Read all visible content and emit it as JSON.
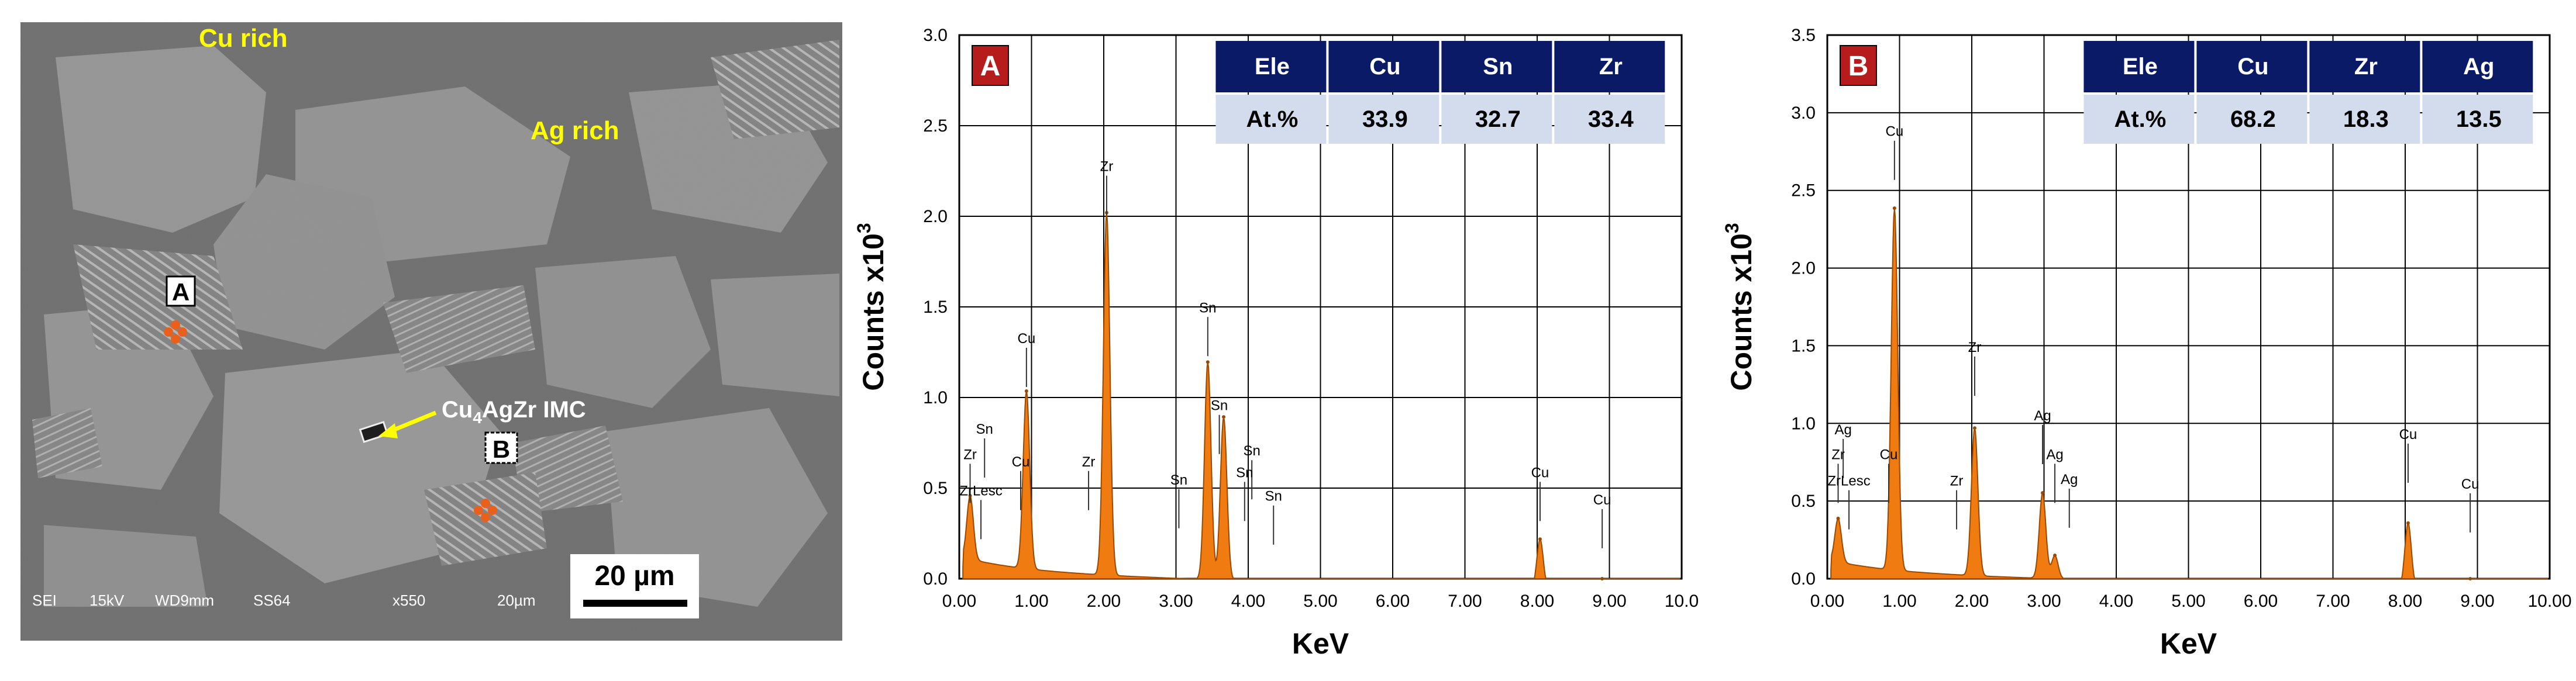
{
  "micrograph": {
    "region_labels": [
      "Cu rich",
      "Ag rich"
    ],
    "point_a_label": "A",
    "point_b_label": "B",
    "imc_label": "Cu",
    "imc_subscript": "4",
    "imc_label_rest": "AgZr IMC",
    "scale_bar_label": "20 µm",
    "info_bar": [
      "SEI",
      "15kV",
      "WD9mm",
      "SS64",
      "x550",
      "20µm"
    ],
    "colors": {
      "label_yellow": "#ffff00",
      "marker_orange": "#e8601c",
      "matrix": "#9a9a9a"
    }
  },
  "chart_data": [
    {
      "type": "area",
      "badge": "A",
      "xlabel": "KeV",
      "ylabel_main": "Counts x10",
      "ylabel_sup": "3",
      "xlim": [
        0,
        10
      ],
      "ylim": [
        0,
        3.0
      ],
      "xticks": [
        "0.00",
        "1.00",
        "2.00",
        "3.00",
        "4.00",
        "5.00",
        "6.00",
        "7.00",
        "8.00",
        "9.00",
        "10.0"
      ],
      "yticks": [
        "0.0",
        "0.5",
        "1.0",
        "1.5",
        "2.0",
        "2.5",
        "3.0"
      ],
      "grid": true,
      "fill_color": "#f07b10",
      "peaks": [
        [
          0.15,
          0.35
        ],
        [
          0.93,
          0.98
        ],
        [
          2.04,
          2.0
        ],
        [
          3.44,
          1.2
        ],
        [
          3.66,
          0.9
        ],
        [
          8.04,
          0.28
        ],
        [
          8.9,
          0.06
        ]
      ],
      "peak_labels": [
        {
          "text": "Zr",
          "x": 2.04,
          "y": 2.25
        },
        {
          "text": "Cu",
          "x": 0.93,
          "y": 1.3
        },
        {
          "text": "Sn",
          "x": 3.44,
          "y": 1.47
        },
        {
          "text": "Sn",
          "x": 0.35,
          "y": 0.8
        },
        {
          "text": "Zr",
          "x": 0.15,
          "y": 0.66
        },
        {
          "text": "Cu",
          "x": 0.85,
          "y": 0.62
        },
        {
          "text": "Zr",
          "x": 1.79,
          "y": 0.62
        },
        {
          "text": "ZrLesc",
          "x": 0.3,
          "y": 0.46
        },
        {
          "text": "Sn",
          "x": 3.6,
          "y": 0.93
        },
        {
          "text": "Sn",
          "x": 4.05,
          "y": 0.68
        },
        {
          "text": "Sn",
          "x": 3.95,
          "y": 0.56
        },
        {
          "text": "Sn",
          "x": 3.04,
          "y": 0.52
        },
        {
          "text": "Sn",
          "x": 4.35,
          "y": 0.43
        },
        {
          "text": "Cu",
          "x": 8.04,
          "y": 0.56
        },
        {
          "text": "Cu",
          "x": 8.9,
          "y": 0.41
        }
      ],
      "table": {
        "headers": [
          "Ele",
          "Cu",
          "Sn",
          "Zr"
        ],
        "row": [
          "At.%",
          "33.9",
          "32.7",
          "33.4"
        ]
      }
    },
    {
      "type": "area",
      "badge": "B",
      "xlabel": "KeV",
      "ylabel_main": "Counts x10",
      "ylabel_sup": "3",
      "xlim": [
        0,
        10
      ],
      "ylim": [
        0,
        3.5
      ],
      "xticks": [
        "0.00",
        "1.00",
        "2.00",
        "3.00",
        "4.00",
        "5.00",
        "6.00",
        "7.00",
        "8.00",
        "9.00",
        "10.00"
      ],
      "yticks": [
        "0.0",
        "0.5",
        "1.0",
        "1.5",
        "2.0",
        "2.5",
        "3.0",
        "3.5"
      ],
      "grid": true,
      "fill_color": "#f07b10",
      "peaks": [
        [
          0.15,
          0.28
        ],
        [
          0.93,
          2.33
        ],
        [
          2.04,
          0.95
        ],
        [
          2.98,
          0.55
        ],
        [
          3.15,
          0.15
        ],
        [
          8.04,
          0.42
        ],
        [
          8.9,
          0.07
        ]
      ],
      "peak_labels": [
        {
          "text": "Cu",
          "x": 0.93,
          "y": 2.85
        },
        {
          "text": "Zr",
          "x": 2.04,
          "y": 1.46
        },
        {
          "text": "Ag",
          "x": 0.22,
          "y": 0.93
        },
        {
          "text": "Zr",
          "x": 0.15,
          "y": 0.77
        },
        {
          "text": "Cu",
          "x": 0.85,
          "y": 0.77
        },
        {
          "text": "ZrLesc",
          "x": 0.3,
          "y": 0.6
        },
        {
          "text": "Zr",
          "x": 1.79,
          "y": 0.6
        },
        {
          "text": "Ag",
          "x": 2.98,
          "y": 1.02
        },
        {
          "text": "Ag",
          "x": 3.15,
          "y": 0.77
        },
        {
          "text": "Ag",
          "x": 3.35,
          "y": 0.61
        },
        {
          "text": "Cu",
          "x": 8.04,
          "y": 0.9
        },
        {
          "text": "Cu",
          "x": 8.9,
          "y": 0.58
        }
      ],
      "table": {
        "headers": [
          "Ele",
          "Cu",
          "Zr",
          "Ag"
        ],
        "row": [
          "At.%",
          "68.2",
          "18.3",
          "13.5"
        ]
      }
    }
  ]
}
